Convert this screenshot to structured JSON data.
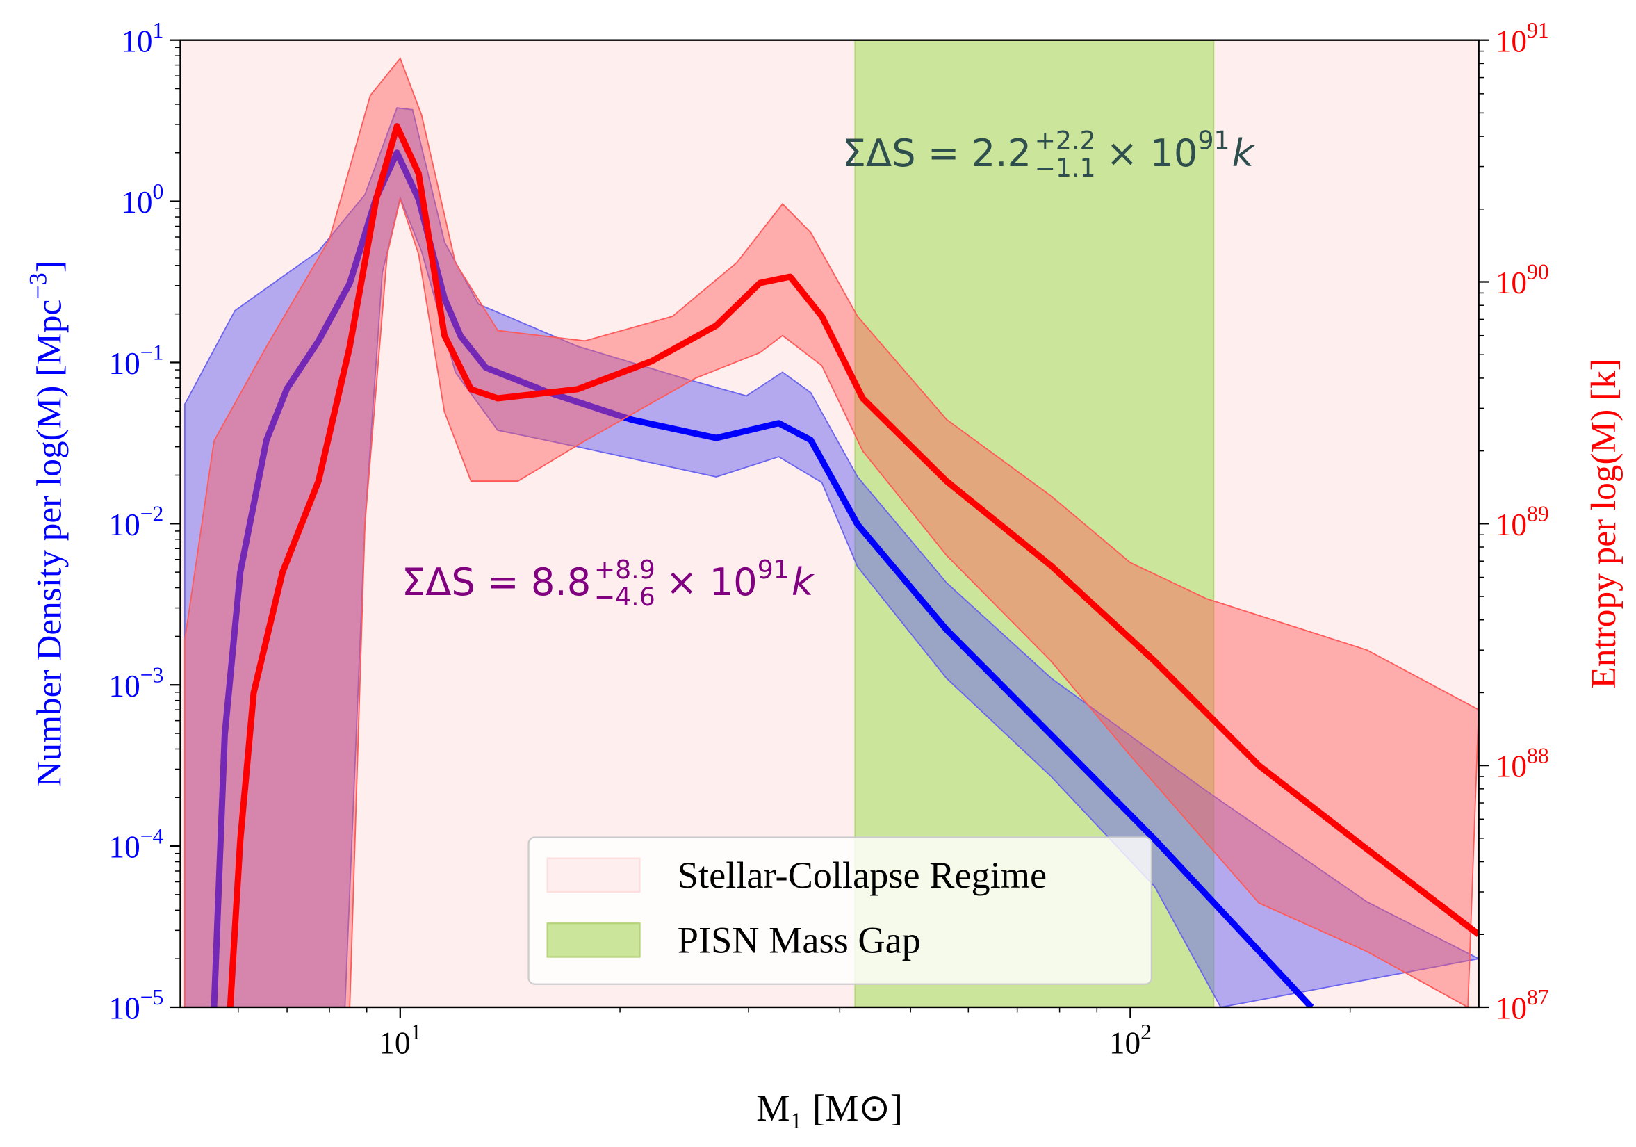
{
  "chart_data": {
    "type": "line",
    "xlabel": "M₁ [M⊙]",
    "ylabel": {
      "text": "Number Density per log(M) [Mpc",
      "exp": "−3",
      "end": "]",
      "color": "#0000ff"
    },
    "y2label": {
      "text": "Entropy per log(M) [k]",
      "color": "#ff0000"
    },
    "xscale": "log",
    "yscale": "log",
    "y2scale": "log",
    "xlim": [
      5,
      300
    ],
    "ylim": [
      1e-05,
      10
    ],
    "y2lim": [
      1e+87,
      1e+91
    ],
    "xticks": [
      {
        "value": 10,
        "label": "10",
        "exp": "1"
      },
      {
        "value": 100,
        "label": "10",
        "exp": "2"
      }
    ],
    "yticks": [
      {
        "value": 1e-05,
        "label": "10",
        "exp": "−5"
      },
      {
        "value": 0.0001,
        "label": "10",
        "exp": "−4"
      },
      {
        "value": 0.001,
        "label": "10",
        "exp": "−3"
      },
      {
        "value": 0.01,
        "label": "10",
        "exp": "−2"
      },
      {
        "value": 0.1,
        "label": "10",
        "exp": "−1"
      },
      {
        "value": 1,
        "label": "10",
        "exp": "0"
      },
      {
        "value": 10,
        "label": "10",
        "exp": "1"
      }
    ],
    "y2ticks": [
      {
        "value": 1e+87,
        "label": "10",
        "exp": "87"
      },
      {
        "value": 1e+88,
        "label": "10",
        "exp": "88"
      },
      {
        "value": 1e+89,
        "label": "10",
        "exp": "89"
      },
      {
        "value": 1e+90,
        "label": "10",
        "exp": "90"
      },
      {
        "value": 1e+91,
        "label": "10",
        "exp": "91"
      }
    ],
    "regions": [
      {
        "name": "Stellar-Collapse Regime",
        "color": "#ffeeee",
        "range": [
          5,
          300
        ]
      },
      {
        "name": "PISN Mass Gap",
        "color": "#cbe59a",
        "range": [
          42,
          130
        ]
      }
    ],
    "legend": "lower center",
    "bands": [
      {
        "color": "#6a64ee",
        "opacity": 0.5,
        "axis": "y",
        "upper": {
          "x": [
            5.07,
            5.94,
            7.73,
            8.95,
            9.9,
            10.4,
            11.5,
            12.8,
            17.5,
            24.4,
            29.8,
            33.4,
            36.5,
            42.3,
            56,
            77.9,
            127,
            211,
            300
          ],
          "values": [
            0.055,
            0.21,
            0.49,
            1.1,
            3.8,
            3.7,
            0.56,
            0.23,
            0.126,
            0.08,
            0.062,
            0.087,
            0.065,
            0.0195,
            0.0043,
            0.0011,
            0.00022,
            4.5e-05,
            2e-05
          ]
        },
        "lower": {
          "x": [
            5.07,
            8.4,
            8.95,
            9.45,
            10,
            10.7,
            11.9,
            13.6,
            17.5,
            27.1,
            33,
            37.8,
            42.3,
            56,
            77.9,
            108,
            133
          ],
          "values": [
            1e-05,
            1e-05,
            0.01,
            0.36,
            1.05,
            0.49,
            0.087,
            0.038,
            0.03,
            0.0195,
            0.026,
            0.018,
            0.0054,
            0.0011,
            0.00027,
            5.6e-05,
            1e-05
          ]
        }
      },
      {
        "color": "#ff5a5a",
        "opacity": 0.45,
        "axis": "y2",
        "upper": {
          "x": [
            5.07,
            5.56,
            6.56,
            8.0,
            9.1,
            10,
            10.7,
            11.9,
            13.6,
            17.9,
            23.6,
            28.9,
            33.4,
            36.5,
            42.3,
            56,
            77.9,
            100,
            127,
            211,
            300
          ],
          "values": [
            3.3e+88,
            2.2e+89,
            5.4e+89,
            1.5e+90,
            5.9e+90,
            8.4e+90,
            4.9e+90,
            1.2e+90,
            6.3e+89,
            5.7e+89,
            7.2e+89,
            1.2e+90,
            2.1e+90,
            1.6e+90,
            7.2e+89,
            2.7e+89,
            1.3e+89,
            6.9e+88,
            4.9e+88,
            3e+88,
            1.7e+88
          ]
        },
        "lower": {
          "x": [
            5.07,
            8.53,
            8.95,
            9.6,
            10,
            10.6,
            11.5,
            12.5,
            14.5,
            17.9,
            25.4,
            31.1,
            33.4,
            37.8,
            43,
            56,
            77.9,
            100,
            150,
            211,
            290
          ],
          "values": [
            1e+87,
            1e+87,
            1e+89,
            1.3e+90,
            2.2e+90,
            1.3e+90,
            2.9e+89,
            1.5e+89,
            1.5e+89,
            2.2e+89,
            4e+89,
            5.1e+89,
            6e+89,
            4.5e+89,
            2e+89,
            7.4e+88,
            2.7e+88,
            1.1e+88,
            2.7e+87,
            1.7e+87,
            1e+87
          ]
        }
      }
    ],
    "series": [
      {
        "color": "#0000ff",
        "overlap_color": "#5a00bb",
        "axis": "y",
        "x": [
          5.56,
          5.75,
          6.04,
          6.56,
          7.0,
          7.73,
          8.53,
          9.27,
          9.9,
          10.6,
          11.5,
          12.1,
          13.1,
          16.0,
          20.8,
          27.1,
          33.0,
          36.5,
          42.3,
          56,
          77.9,
          108,
          177
        ],
        "values": [
          1e-05,
          0.00049,
          0.005,
          0.033,
          0.069,
          0.136,
          0.31,
          1.05,
          2.0,
          1.03,
          0.25,
          0.146,
          0.093,
          0.065,
          0.044,
          0.034,
          0.042,
          0.033,
          0.0099,
          0.0022,
          0.00049,
          0.00011,
          1e-05
        ]
      },
      {
        "color": "#ff0000",
        "axis": "y2",
        "x": [
          5.85,
          6.04,
          6.3,
          6.9,
          7.73,
          8.53,
          9.27,
          9.9,
          10.6,
          11.5,
          12.5,
          13.6,
          17.5,
          22.1,
          27.1,
          31.1,
          34.2,
          37.8,
          43,
          56,
          77.9,
          108,
          150,
          211,
          300
        ],
        "values": [
          1e+87,
          4.9e+87,
          2e+88,
          6.3e+88,
          1.5e+89,
          5.4e+89,
          2.2e+90,
          4.4e+90,
          2.8e+90,
          6e+89,
          3.6e+89,
          3.3e+89,
          3.6e+89,
          4.7e+89,
          6.6e+89,
          9.9e+89,
          1.05e+90,
          7.2e+89,
          3.3e+89,
          1.5e+89,
          6.7e+88,
          2.7e+88,
          1e+88,
          4.5e+87,
          2e+87
        ]
      }
    ],
    "annotations": [
      {
        "text": "ΣΔS = 2.2",
        "sup": "+2.2",
        "sub": "−1.1",
        "rest": "× 10",
        "exp": "91",
        "end": "k",
        "color": "#2f4f4f"
      },
      {
        "text": "ΣΔS = 8.8",
        "sup": "+8.9",
        "sub": "−4.6",
        "rest": "× 10",
        "exp": "91",
        "end": "k",
        "color": "#800080"
      }
    ]
  }
}
